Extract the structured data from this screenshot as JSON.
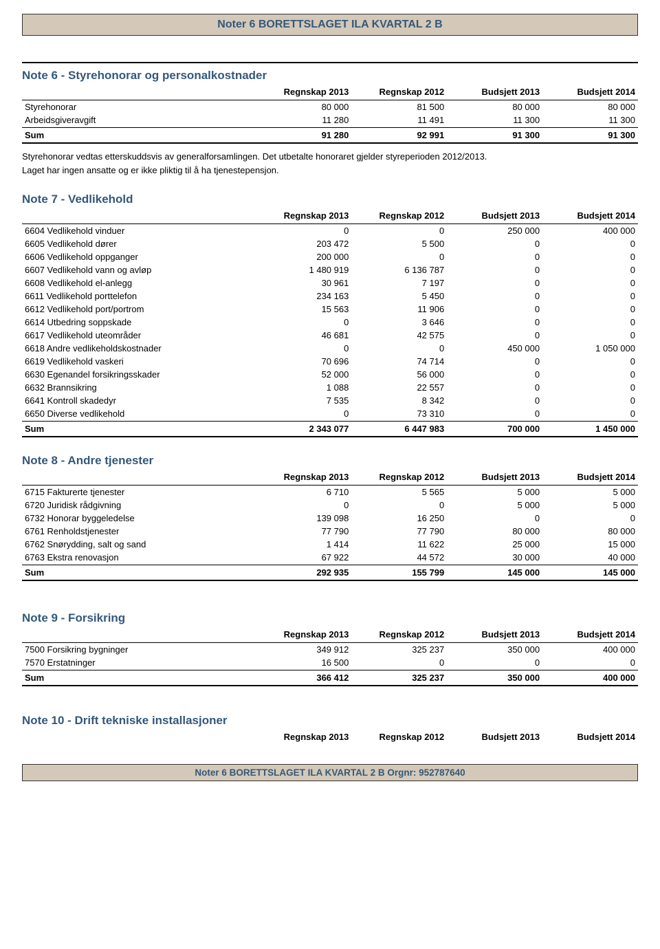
{
  "header": {
    "title": "Noter 6 BORETTSLAGET ILA KVARTAL 2 B"
  },
  "footer": {
    "title": "Noter 6 BORETTSLAGET ILA KVARTAL 2 B Orgnr: 952787640"
  },
  "columns": {
    "c1": "Regnskap 2013",
    "c2": "Regnskap 2012",
    "c3": "Budsjett 2013",
    "c4": "Budsjett 2014"
  },
  "note6": {
    "title": "Note 6 - Styrehonorar og personalkostnader",
    "rows": [
      {
        "label": "Styrehonorar",
        "v": [
          "80 000",
          "81 500",
          "80 000",
          "80 000"
        ]
      },
      {
        "label": "Arbeidsgiveravgift",
        "v": [
          "11 280",
          "11 491",
          "11 300",
          "11 300"
        ]
      }
    ],
    "sum": {
      "label": "Sum",
      "v": [
        "91 280",
        "92 991",
        "91 300",
        "91 300"
      ]
    },
    "text1": "Styrehonorar vedtas etterskuddsvis av generalforsamlingen. Det utbetalte honoraret gjelder styreperioden 2012/2013.",
    "text2": "Laget har ingen ansatte og er ikke pliktig til å ha tjenestepensjon."
  },
  "note7": {
    "title": "Note 7 - Vedlikehold",
    "rows": [
      {
        "label": "6604 Vedlikehold vinduer",
        "v": [
          "0",
          "0",
          "250 000",
          "400 000"
        ]
      },
      {
        "label": "6605 Vedlikehold dører",
        "v": [
          "203 472",
          "5 500",
          "0",
          "0"
        ]
      },
      {
        "label": "6606 Vedlikehold oppganger",
        "v": [
          "200 000",
          "0",
          "0",
          "0"
        ]
      },
      {
        "label": "6607 Vedlikehold vann og avløp",
        "v": [
          "1 480 919",
          "6 136 787",
          "0",
          "0"
        ]
      },
      {
        "label": "6608 Vedlikehold el-anlegg",
        "v": [
          "30 961",
          "7 197",
          "0",
          "0"
        ]
      },
      {
        "label": "6611 Vedlikehold porttelefon",
        "v": [
          "234 163",
          "5 450",
          "0",
          "0"
        ]
      },
      {
        "label": "6612 Vedlikehold port/portrom",
        "v": [
          "15 563",
          "11 906",
          "0",
          "0"
        ]
      },
      {
        "label": "6614 Utbedring soppskade",
        "v": [
          "0",
          "3 646",
          "0",
          "0"
        ]
      },
      {
        "label": "6617 Vedlikehold uteområder",
        "v": [
          "46 681",
          "42 575",
          "0",
          "0"
        ]
      },
      {
        "label": "6618 Andre vedlikeholdskostnader",
        "v": [
          "0",
          "0",
          "450 000",
          "1 050 000"
        ]
      },
      {
        "label": "6619 Vedlikehold vaskeri",
        "v": [
          "70 696",
          "74 714",
          "0",
          "0"
        ]
      },
      {
        "label": "6630 Egenandel forsikringsskader",
        "v": [
          "52 000",
          "56 000",
          "0",
          "0"
        ]
      },
      {
        "label": "6632 Brannsikring",
        "v": [
          "1 088",
          "22 557",
          "0",
          "0"
        ]
      },
      {
        "label": "6641 Kontroll skadedyr",
        "v": [
          "7 535",
          "8 342",
          "0",
          "0"
        ]
      },
      {
        "label": "6650 Diverse vedlikehold",
        "v": [
          "0",
          "73 310",
          "0",
          "0"
        ]
      }
    ],
    "sum": {
      "label": "Sum",
      "v": [
        "2 343 077",
        "6 447 983",
        "700 000",
        "1 450 000"
      ]
    }
  },
  "note8": {
    "title": "Note 8 - Andre tjenester",
    "rows": [
      {
        "label": "6715 Fakturerte tjenester",
        "v": [
          "6 710",
          "5 565",
          "5 000",
          "5 000"
        ]
      },
      {
        "label": "6720 Juridisk rådgivning",
        "v": [
          "0",
          "0",
          "5 000",
          "5 000"
        ]
      },
      {
        "label": "6732 Honorar byggeledelse",
        "v": [
          "139 098",
          "16 250",
          "0",
          "0"
        ]
      },
      {
        "label": "6761 Renholdstjenester",
        "v": [
          "77 790",
          "77 790",
          "80 000",
          "80 000"
        ]
      },
      {
        "label": "6762 Snørydding, salt og sand",
        "v": [
          "1 414",
          "11 622",
          "25 000",
          "15 000"
        ]
      },
      {
        "label": "6763 Ekstra renovasjon",
        "v": [
          "67 922",
          "44 572",
          "30 000",
          "40 000"
        ]
      }
    ],
    "sum": {
      "label": "Sum",
      "v": [
        "292 935",
        "155 799",
        "145 000",
        "145 000"
      ]
    }
  },
  "note9": {
    "title": "Note 9 - Forsikring",
    "rows": [
      {
        "label": "7500 Forsikring bygninger",
        "v": [
          "349 912",
          "325 237",
          "350 000",
          "400 000"
        ]
      },
      {
        "label": "7570 Erstatninger",
        "v": [
          "16 500",
          "0",
          "0",
          "0"
        ]
      }
    ],
    "sum": {
      "label": "Sum",
      "v": [
        "366 412",
        "325 237",
        "350 000",
        "400 000"
      ]
    }
  },
  "note10": {
    "title": "Note 10 - Drift tekniske installasjoner"
  }
}
